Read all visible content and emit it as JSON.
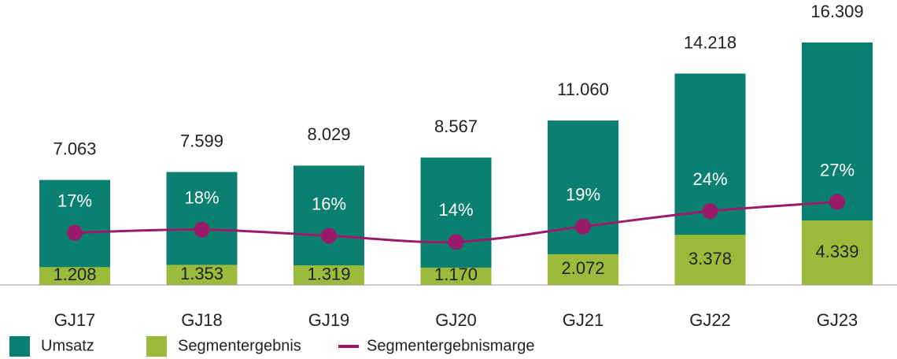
{
  "chart_data": {
    "type": "bar",
    "categories": [
      "GJ17",
      "GJ18",
      "GJ19",
      "GJ20",
      "GJ21",
      "GJ22",
      "GJ23"
    ],
    "series": [
      {
        "name": "Umsatz",
        "color": "#0b8070",
        "values": [
          7063,
          7599,
          8029,
          8567,
          11060,
          14218,
          16309
        ],
        "value_labels": [
          "7.063",
          "7.599",
          "8.029",
          "8.567",
          "11.060",
          "14.218",
          "16.309"
        ]
      },
      {
        "name": "Segmentergebnis",
        "color": "#9bbb3c",
        "values": [
          1208,
          1353,
          1319,
          1170,
          2072,
          3378,
          4339
        ],
        "value_labels": [
          "1.208",
          "1.353",
          "1.319",
          "1.170",
          "2.072",
          "3.378",
          "4.339"
        ]
      },
      {
        "name": "Segmentergebnismarge",
        "type": "line",
        "axis": "y2",
        "color": "#9b1b6b",
        "values": [
          17,
          18,
          16,
          14,
          19,
          24,
          27
        ],
        "value_labels": [
          "17%",
          "18%",
          "16%",
          "14%",
          "19%",
          "24%",
          "27%"
        ]
      }
    ],
    "ylim": [
      0,
      18000
    ],
    "y2lim": [
      0,
      87
    ],
    "legend": "bottom-left"
  }
}
